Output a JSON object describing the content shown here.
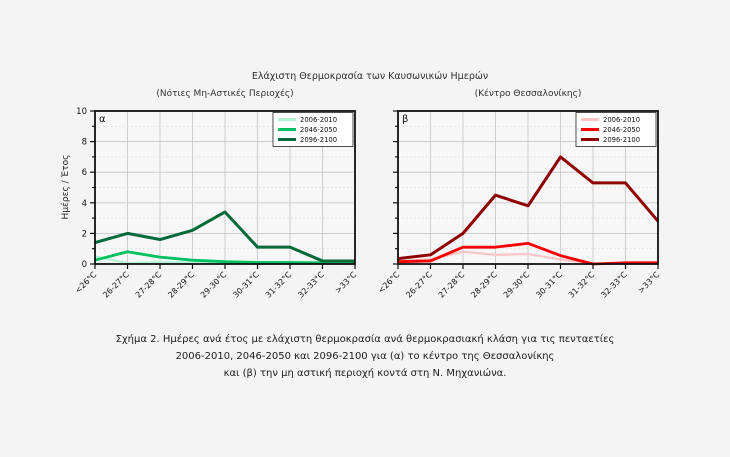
{
  "figure": {
    "title": "Ελάχιστη Θερμοκρασία των Καυσωνικών Ημερών",
    "ylabel": "Ημέρες / Έτος",
    "caption": {
      "line1": "Σχήμα 2. Ημέρες ανά έτος με ελάχιστη θερμοκρασία ανά θερμοκρασιακή κλάση για τις πενταετίες",
      "line2": "2006-2010, 2046-2050 και 2096-2100 για (α) το κέντρο της Θεσσαλονίκης",
      "line3": "και (β) την μη αστική περιοχή κοντά στη Ν. Μηχανιώνα."
    },
    "colors": {
      "axis": "#111111",
      "grid_major": "#c9c9c9",
      "grid_minor": "#d6d6d6",
      "plot_bg": "#f7f7f7",
      "page_bg": "#f4f4f5",
      "legend_bg": "#ffffff"
    }
  },
  "chart_data": [
    {
      "type": "line",
      "panel_label": "α",
      "subtitle": "(Νότιες Μη-Αστικές Περιοχές)",
      "categories": [
        "<26°C",
        "26-27°C",
        "27-28°C",
        "28-29°C",
        "29-30°C",
        "30-31°C",
        "31-32°C",
        "32-33°C",
        ">33°C"
      ],
      "ylabel": "Ημέρες / Έτος",
      "ylim": [
        0,
        10
      ],
      "ytick_step": 2,
      "show_ytick_labels": true,
      "grid": true,
      "legend_position": "top-right",
      "series": [
        {
          "name": "2006-2010",
          "color": "#b4f1d3",
          "width": 2.2,
          "values": [
            0.5,
            0.05,
            0.12,
            0.1,
            0.05,
            0.03,
            0.03,
            0.03,
            0.03
          ]
        },
        {
          "name": "2046-2050",
          "color": "#00c060",
          "width": 2.8,
          "values": [
            0.25,
            0.8,
            0.45,
            0.25,
            0.15,
            0.1,
            0.1,
            0.08,
            0.08
          ]
        },
        {
          "name": "2096-2100",
          "color": "#046b38",
          "width": 3,
          "values": [
            1.4,
            2.0,
            1.6,
            2.2,
            3.4,
            1.1,
            1.1,
            0.2,
            0.2
          ]
        }
      ]
    },
    {
      "type": "line",
      "panel_label": "β",
      "subtitle": "(Κέντρο Θεσσαλονίκης)",
      "categories": [
        "<26°C",
        "26-27°C",
        "27-28°C",
        "28-29°C",
        "29-30°C",
        "30-31°C",
        "31-32°C",
        "32-33°C",
        ">33°C"
      ],
      "ylabel": "Ημέρες / Έτος",
      "ylim": [
        0,
        10
      ],
      "ytick_step": 2,
      "show_ytick_labels": false,
      "grid": true,
      "legend_position": "top-right",
      "series": [
        {
          "name": "2006-2010",
          "color": "#ffc4c4",
          "width": 2.2,
          "values": [
            0.2,
            0.3,
            0.8,
            0.6,
            0.65,
            0.3,
            0.02,
            0.02,
            0.02
          ]
        },
        {
          "name": "2046-2050",
          "color": "#f50000",
          "width": 2.8,
          "values": [
            0.15,
            0.2,
            1.1,
            1.1,
            1.35,
            0.55,
            0.0,
            0.08,
            0.08
          ]
        },
        {
          "name": "2096-2100",
          "color": "#8f0000",
          "width": 3,
          "values": [
            0.35,
            0.6,
            2.0,
            4.5,
            3.8,
            7.0,
            5.3,
            5.3,
            2.8
          ]
        }
      ]
    }
  ]
}
